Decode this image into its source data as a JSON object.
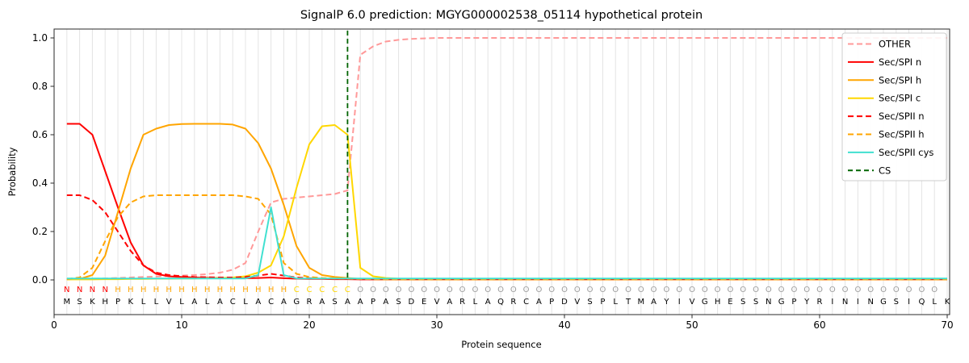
{
  "chart_data": {
    "type": "line",
    "title": "SignalP 6.0 prediction: MGYG000002538_05114 hypothetical protein",
    "xlabel": "Protein sequence",
    "ylabel": "Probability",
    "xlim": [
      0,
      70
    ],
    "ylim": [
      0.0,
      1.0
    ],
    "x_ticks": [
      0,
      10,
      20,
      30,
      40,
      50,
      60,
      70
    ],
    "y_ticks": [
      0.0,
      0.2,
      0.4,
      0.6,
      0.8,
      1.0
    ],
    "y_tick_labels": [
      "0.0",
      "0.2",
      "0.4",
      "0.6",
      "0.8",
      "1.0"
    ],
    "grid": "vertical-per-residue",
    "legend_position": "upper right",
    "cs_position": 23,
    "cs_line": {
      "label": "CS",
      "color": "#006400",
      "dash": "6 4"
    },
    "sequence": "MSKHPKLLVLALACLACAGRASAAPASDEVARLAQRCAPDVSPLTMAYIVGHESSNGPYRININGSIQLK",
    "region_labels": "NNNNHHHHHHHHHHHHHHCCCCCOOOOOOOOOOOOOOOOOOOOOOOOOOOOOOOOOOOOOOOOOOOOOO",
    "region_colors": {
      "N": "#ff0000",
      "H": "#ffa500",
      "C": "#ffd700",
      "O": "#9e9e9e"
    },
    "sequence_color": "#000000",
    "series": [
      {
        "name": "OTHER",
        "color": "#ff9999",
        "dash": "7 4",
        "values": [
          0.004,
          0.004,
          0.005,
          0.006,
          0.008,
          0.01,
          0.012,
          0.014,
          0.016,
          0.018,
          0.02,
          0.024,
          0.03,
          0.042,
          0.07,
          0.2,
          0.32,
          0.335,
          0.34,
          0.345,
          0.35,
          0.355,
          0.37,
          0.93,
          0.965,
          0.985,
          0.992,
          0.996,
          0.998,
          1.0,
          1.0,
          1.0,
          1.0,
          1.0,
          1.0,
          1.0,
          1.0,
          1.0,
          1.0,
          1.0,
          1.0,
          1.0,
          1.0,
          1.0,
          1.0,
          1.0,
          1.0,
          1.0,
          1.0,
          1.0,
          1.0,
          1.0,
          1.0,
          1.0,
          1.0,
          1.0,
          1.0,
          1.0,
          1.0,
          1.0,
          1.0,
          1.0,
          1.0,
          1.0,
          1.0,
          1.0,
          1.0,
          1.0,
          1.0,
          1.0
        ]
      },
      {
        "name": "Sec/SPI n",
        "color": "#ff0000",
        "dash": null,
        "values": [
          0.645,
          0.645,
          0.6,
          0.45,
          0.3,
          0.155,
          0.06,
          0.025,
          0.015,
          0.012,
          0.01,
          0.009,
          0.008,
          0.007,
          0.007,
          0.008,
          0.01,
          0.007,
          0.005,
          0.004,
          0.004,
          0.003,
          0.003,
          0.002,
          0.002,
          0.002,
          0.002,
          0.002,
          0.002,
          0.002,
          0.002,
          0.002,
          0.002,
          0.002,
          0.002,
          0.002,
          0.002,
          0.002,
          0.002,
          0.002,
          0.002,
          0.002,
          0.002,
          0.002,
          0.002,
          0.002,
          0.002,
          0.002,
          0.002,
          0.002,
          0.002,
          0.002,
          0.002,
          0.002,
          0.002,
          0.002,
          0.002,
          0.002,
          0.002,
          0.002,
          0.002,
          0.002,
          0.002,
          0.002,
          0.002,
          0.002,
          0.002,
          0.002,
          0.002,
          0.002
        ]
      },
      {
        "name": "Sec/SPI h",
        "color": "#ffa500",
        "dash": null,
        "values": [
          0.002,
          0.004,
          0.02,
          0.1,
          0.28,
          0.46,
          0.6,
          0.625,
          0.64,
          0.644,
          0.645,
          0.645,
          0.645,
          0.642,
          0.625,
          0.565,
          0.46,
          0.31,
          0.14,
          0.05,
          0.02,
          0.012,
          0.008,
          0.004,
          0.003,
          0.002,
          0.002,
          0.002,
          0.002,
          0.002,
          0.002,
          0.002,
          0.002,
          0.002,
          0.002,
          0.002,
          0.002,
          0.002,
          0.002,
          0.002,
          0.002,
          0.002,
          0.002,
          0.002,
          0.002,
          0.002,
          0.002,
          0.002,
          0.002,
          0.002,
          0.002,
          0.002,
          0.002,
          0.002,
          0.002,
          0.002,
          0.002,
          0.002,
          0.002,
          0.002,
          0.002,
          0.002,
          0.002,
          0.002,
          0.002,
          0.002,
          0.002,
          0.002,
          0.002,
          0.002
        ]
      },
      {
        "name": "Sec/SPI c",
        "color": "#ffd700",
        "dash": null,
        "values": [
          0.002,
          0.002,
          0.002,
          0.003,
          0.003,
          0.004,
          0.004,
          0.005,
          0.005,
          0.006,
          0.006,
          0.007,
          0.008,
          0.01,
          0.015,
          0.03,
          0.06,
          0.18,
          0.38,
          0.56,
          0.635,
          0.64,
          0.6,
          0.05,
          0.015,
          0.008,
          0.005,
          0.004,
          0.003,
          0.003,
          0.003,
          0.003,
          0.003,
          0.003,
          0.003,
          0.003,
          0.003,
          0.003,
          0.003,
          0.003,
          0.003,
          0.003,
          0.003,
          0.003,
          0.003,
          0.003,
          0.003,
          0.003,
          0.003,
          0.003,
          0.003,
          0.003,
          0.003,
          0.003,
          0.003,
          0.003,
          0.003,
          0.003,
          0.003,
          0.003,
          0.003,
          0.003,
          0.003,
          0.003,
          0.003,
          0.003,
          0.003,
          0.003,
          0.003,
          0.003
        ]
      },
      {
        "name": "Sec/SPII n",
        "color": "#ff0000",
        "dash": "7 4",
        "values": [
          0.35,
          0.35,
          0.33,
          0.28,
          0.2,
          0.12,
          0.06,
          0.03,
          0.02,
          0.015,
          0.012,
          0.011,
          0.01,
          0.01,
          0.012,
          0.018,
          0.025,
          0.018,
          0.01,
          0.007,
          0.005,
          0.004,
          0.004,
          0.003,
          0.003,
          0.003,
          0.003,
          0.003,
          0.003,
          0.003,
          0.003,
          0.003,
          0.003,
          0.003,
          0.003,
          0.003,
          0.003,
          0.003,
          0.003,
          0.003,
          0.003,
          0.003,
          0.003,
          0.003,
          0.003,
          0.003,
          0.003,
          0.003,
          0.003,
          0.003,
          0.003,
          0.003,
          0.003,
          0.003,
          0.003,
          0.003,
          0.003,
          0.003,
          0.003,
          0.003,
          0.003,
          0.003,
          0.003,
          0.003,
          0.003,
          0.003,
          0.003,
          0.003,
          0.003,
          0.003
        ]
      },
      {
        "name": "Sec/SPII h",
        "color": "#ffa500",
        "dash": "7 4",
        "values": [
          0.003,
          0.01,
          0.05,
          0.16,
          0.26,
          0.32,
          0.345,
          0.35,
          0.35,
          0.35,
          0.35,
          0.35,
          0.35,
          0.35,
          0.345,
          0.335,
          0.27,
          0.07,
          0.025,
          0.012,
          0.008,
          0.006,
          0.005,
          0.004,
          0.003,
          0.003,
          0.003,
          0.003,
          0.003,
          0.003,
          0.003,
          0.003,
          0.003,
          0.003,
          0.003,
          0.003,
          0.003,
          0.003,
          0.003,
          0.003,
          0.003,
          0.003,
          0.003,
          0.003,
          0.003,
          0.003,
          0.003,
          0.003,
          0.003,
          0.003,
          0.003,
          0.003,
          0.003,
          0.003,
          0.003,
          0.003,
          0.003,
          0.003,
          0.003,
          0.003,
          0.003,
          0.003,
          0.003,
          0.003,
          0.003,
          0.003,
          0.003,
          0.003,
          0.003,
          0.003
        ]
      },
      {
        "name": "Sec/SPII cys",
        "color": "#40e0d0",
        "dash": null,
        "values": [
          0.006,
          0.006,
          0.006,
          0.006,
          0.006,
          0.006,
          0.006,
          0.006,
          0.006,
          0.006,
          0.006,
          0.006,
          0.006,
          0.006,
          0.006,
          0.02,
          0.3,
          0.02,
          0.006,
          0.006,
          0.006,
          0.006,
          0.006,
          0.006,
          0.006,
          0.006,
          0.006,
          0.006,
          0.006,
          0.006,
          0.006,
          0.006,
          0.006,
          0.006,
          0.006,
          0.006,
          0.006,
          0.006,
          0.006,
          0.006,
          0.006,
          0.006,
          0.006,
          0.006,
          0.006,
          0.006,
          0.006,
          0.006,
          0.006,
          0.006,
          0.006,
          0.006,
          0.006,
          0.006,
          0.006,
          0.006,
          0.006,
          0.006,
          0.006,
          0.006,
          0.006,
          0.006,
          0.006,
          0.006,
          0.006,
          0.006,
          0.006,
          0.006,
          0.006,
          0.006
        ]
      }
    ],
    "legend_labels": [
      "OTHER",
      "Sec/SPI n",
      "Sec/SPI h",
      "Sec/SPI c",
      "Sec/SPII n",
      "Sec/SPII h",
      "Sec/SPII cys",
      "CS"
    ]
  }
}
